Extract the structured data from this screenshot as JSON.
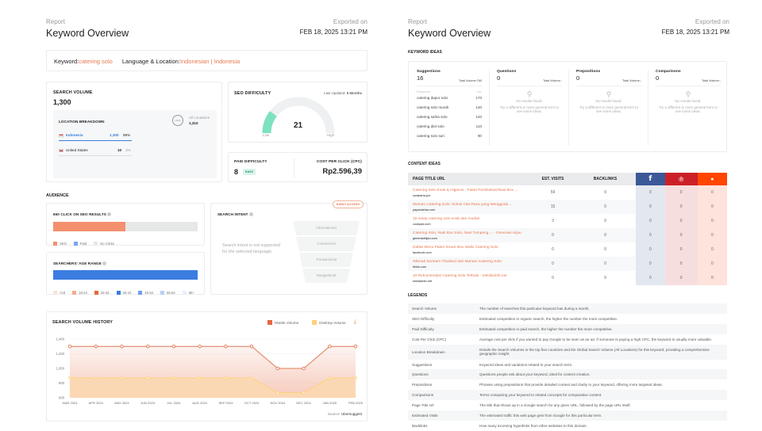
{
  "left_header": {
    "report": "Report",
    "title": "Keyword Overview",
    "exported_label": "Exported on",
    "exported_date": "FEB 18, 2025 13:21 PM"
  },
  "right_header": {
    "report": "Report",
    "title": "Keyword Overview",
    "exported_label": "Exported on",
    "exported_date": "FEB 18, 2025 13:21 PM"
  },
  "keyword_bar": {
    "keyword_label": "Keyword:",
    "keyword": "catering solo",
    "lang_label": "Language & Location:",
    "language": "Indonesian",
    "sep": " | ",
    "location": "Indonesia"
  },
  "search_volume": {
    "label": "SEARCH VOLUME",
    "value": "1,300",
    "breakdown_title": "LOCATION BREAKDOWN",
    "ring": "100%",
    "all_label": "All Locations",
    "all_value": "1,310",
    "countries": [
      {
        "name": "Indonesia",
        "value": "1,300",
        "pct": "99%",
        "share": 99
      },
      {
        "name": "United States",
        "value": "10",
        "pct": "1%",
        "share": 1
      }
    ]
  },
  "seo_difficulty": {
    "label": "SEO DIFFICULTY",
    "updated_label": "Last Updated:",
    "updated_value": "6 Months",
    "value": "21",
    "score": 21,
    "low": "Low",
    "high": "High",
    "color": "#7de2c0"
  },
  "paid": {
    "label": "PAID DIFFICULTY",
    "value": "8",
    "badge": "EASY"
  },
  "cpc": {
    "label": "COST PER CLICK (CPC)",
    "value": "Rp2.596,39"
  },
  "audience": {
    "label": "AUDIENCE",
    "clicks_title": "650 CLICK ON SEO RESULTS",
    "seo_pct": 50,
    "paid_pct": 0,
    "click_legend": [
      {
        "label": "SEO",
        "color": "#f4906e"
      },
      {
        "label": "Paid",
        "color": "#7ba4ea"
      },
      {
        "label": "No Clicks",
        "color": "#e6e8e8"
      }
    ],
    "age_title": "SEARCHERS' AGE RANGE",
    "age_legend": [
      {
        "label": "<18",
        "color": "#fbe2da"
      },
      {
        "label": "18-24",
        "color": "#f6ab95"
      },
      {
        "label": "25-34",
        "color": "#e4663f"
      },
      {
        "label": "35-44",
        "color": "#3b7de0"
      },
      {
        "label": "45-54",
        "color": "#6e9fec"
      },
      {
        "label": "55-64",
        "color": "#b9cff5"
      },
      {
        "label": "65+",
        "color": "#e7eefb"
      }
    ],
    "intent_title": "SEARCH INTENT",
    "early_access": "EARLY ACCESS",
    "intent_msg": "Search intent is not supported for the selected language.",
    "funnel": [
      "Informational",
      "Commercial",
      "Transactional",
      "Navigational"
    ]
  },
  "history": {
    "title": "SEARCH VOLUME HISTORY",
    "source_label": "Source:",
    "source": "Ubersuggest"
  },
  "chart_data": {
    "type": "line",
    "title": "SEARCH VOLUME HISTORY",
    "x": [
      "MAR 2024",
      "APR 2024",
      "MAY 2024",
      "JUN 2024",
      "JUL 2024",
      "AUG 2024",
      "SEP 2024",
      "OCT 2024",
      "NOV 2024",
      "DEC 2024",
      "JAN 2025",
      "FEB 2025"
    ],
    "series": [
      {
        "name": "Mobile Volume",
        "color": "#e07a55",
        "values": [
          1300,
          1300,
          1300,
          1300,
          1300,
          1300,
          1300,
          1300,
          1000,
          1000,
          1300,
          1300
        ]
      },
      {
        "name": "Desktop Volume",
        "color": "#fcd27a",
        "values": [
          870,
          870,
          870,
          870,
          870,
          870,
          870,
          870,
          670,
          670,
          870,
          870
        ]
      }
    ],
    "yticks": [
      "600",
      "800",
      "1,000",
      "1,200",
      "1,400"
    ],
    "ylim": [
      600,
      1400
    ],
    "legend": "top-right",
    "grid": true
  },
  "keyword_ideas": {
    "label": "KEYWORD IDEAS",
    "suggestions": {
      "title": "Suggestions",
      "count": "16",
      "total": "Total Volume:760",
      "col_kw": "Keywords",
      "col_vol": "Vol.",
      "rows": [
        [
          "catering dapur solo",
          "170"
        ],
        [
          "catering solo murah",
          "140"
        ],
        [
          "catering safira solo",
          "140"
        ],
        [
          "catering diet solo",
          "110"
        ],
        [
          "catering solo sari",
          "90"
        ]
      ]
    },
    "empty_cols": [
      {
        "title": "Questions",
        "count": "0",
        "total": "Total Volume:-"
      },
      {
        "title": "Prepositions",
        "count": "0",
        "total": "Total Volume:-"
      },
      {
        "title": "Comparisons",
        "count": "0",
        "total": "Total Volume:-"
      }
    ],
    "empty_title": "No results found.",
    "empty_msg": "Try a different or more general term to see some ideas."
  },
  "content_ideas": {
    "label": "CONTENT IDEAS",
    "headers": [
      "PAGE TITLE URL",
      "EST. VISITS",
      "BACKLINKS"
    ],
    "social_colors": {
      "facebook": "#3b5998",
      "pinterest": "#cb2027",
      "reddit": "#ff4500"
    },
    "rows": [
      {
        "title": "Catering Solo Enak & Higienis - Paket Pernikahan/Nasi Box ...",
        "domain": "surakarta.pro",
        "visits": "59",
        "backlinks": "9",
        "fb": "0",
        "pin": "0",
        "red": "0"
      },
      {
        "title": "Mariam Catering Solo: Solusi Cita Rasa yang Menggoda ...",
        "domain": "papandehar.com",
        "visits": "15",
        "backlinks": "0",
        "fb": "0",
        "pin": "0",
        "red": "0"
      },
      {
        "title": "15 resep catering solo enak dan mudah",
        "domain": "cookpad.com",
        "visits": "3",
        "backlinks": "0",
        "fb": "0",
        "pin": "0",
        "red": "0"
      },
      {
        "title": "Catering Solo, Nasi Box Solo, Nasi Tumpeng ... - Generasi Hijau",
        "domain": "generasihijau.com",
        "visits": "0",
        "backlinks": "0",
        "fb": "0",
        "pin": "0",
        "red": "0"
      },
      {
        "title": "Daftar Menu Paket Snack Box Wallx Catering Solo",
        "domain": "facebook.com",
        "visits": "0",
        "backlinks": "0",
        "fb": "0",
        "pin": "0",
        "red": "0"
      },
      {
        "title": "Nikmati Somtam Thailand dari Mariam Catering Solo",
        "domain": "tiktok.com",
        "visits": "0",
        "backlinks": "0",
        "fb": "0",
        "pin": "0",
        "red": "0"
      },
      {
        "title": "10 Rekomendasi Catering Solo Terbaik - Sekilasinfo.net",
        "domain": "sekilasinfo.net",
        "visits": "0",
        "backlinks": "9",
        "fb": "0",
        "pin": "0",
        "red": "0"
      }
    ]
  },
  "legends": {
    "label": "LEGENDS",
    "rows": [
      [
        "Search Volume",
        "The number of searches this particular keyword has during a month."
      ],
      [
        "SEO Difficulty",
        "Estimated competition in organic search, the higher the number the more competitive."
      ],
      [
        "Paid Difficulty",
        "Estimated competition in paid search, the higher the number the more competitive."
      ],
      [
        "Cost Per Click (CPC)",
        "Average cost per click if you wanted to pay Google to be seen as an ad. If someone is paying a high CPC, the keyword is usually more valuable."
      ],
      [
        "Location Breakdown",
        "Details the Search Volumes in the top five countries and the Global Search Volume (All Locations) for this keyword, providing a comprehensive geographic insight."
      ],
      [
        "Suggestions",
        "Keyword ideas and variations related to your search term."
      ],
      [
        "Questions",
        "Questions people ask about your keyword, ideal for content creation."
      ],
      [
        "Prepositions",
        "Phrases using prepositions that provide detailed context and clarity to your keyword, offering more targeted ideas."
      ],
      [
        "Comparisons",
        "Terms comparing your keyword to related concepts for comparative content."
      ],
      [
        "Page Title Url",
        "The title that shows up in a Google search for any given URL, followed by the page URL itself."
      ],
      [
        "Estimated Visits",
        "The estimated traffic this web page gets from Google for this particular term."
      ],
      [
        "Backlinks",
        "How many incoming hyperlinks from other websites to this domain."
      ]
    ]
  }
}
